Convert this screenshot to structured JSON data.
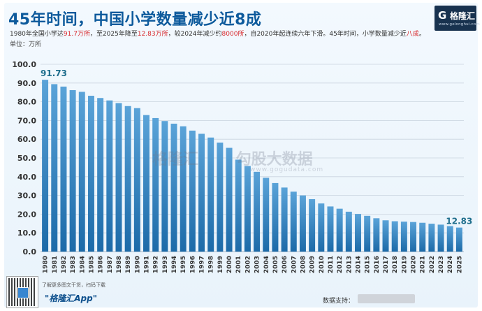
{
  "header": {
    "title": "45年时间，中国小学数量减少近8成",
    "subtitle_parts": [
      {
        "text": "1980年全国小学达",
        "hl": false
      },
      {
        "text": "91.7万所",
        "hl": true
      },
      {
        "text": "，至2025年降至",
        "hl": false
      },
      {
        "text": "12.83万所",
        "hl": true
      },
      {
        "text": "，较2024年减少约",
        "hl": false
      },
      {
        "text": "8000所",
        "hl": true
      },
      {
        "text": "，自2020年起连续六年下滑。45年时间，小学数量减少近",
        "hl": false
      },
      {
        "text": "八成",
        "hl": true
      },
      {
        "text": "。",
        "hl": false
      }
    ],
    "unit": "单位：万所"
  },
  "logo": {
    "mark": "G",
    "name": "格隆汇",
    "url": "www.gelonghui.com"
  },
  "watermark": {
    "brand": "格隆汇",
    "sub": "勾股大数据",
    "url": "www.gogudata.com"
  },
  "footer": {
    "note": "了解更多图文干货，扫码下载",
    "app": "\"格隆汇App\"",
    "source_label": "数据支持："
  },
  "colors": {
    "bar_top": "#5aa3d8",
    "bar_bottom": "#1c6aa8",
    "axis_text": "#333333",
    "title": "#0d5a9c",
    "highlight": "#d8262b",
    "value_label": "#1f6e8c"
  },
  "chart_data": {
    "type": "bar",
    "title": "45年时间，中国小学数量减少近8成",
    "ylabel": "单位：万所",
    "ylim": [
      0,
      100
    ],
    "yticks": [
      "0.0",
      "10.0",
      "20.0",
      "30.0",
      "40.0",
      "50.0",
      "60.0",
      "70.0",
      "80.0",
      "90.0",
      "100.0"
    ],
    "grid": true,
    "categories": [
      "1980",
      "1981",
      "1982",
      "1983",
      "1984",
      "1985",
      "1986",
      "1987",
      "1988",
      "1989",
      "1990",
      "1991",
      "1992",
      "1993",
      "1994",
      "1995",
      "1996",
      "1997",
      "1998",
      "1999",
      "2000",
      "2001",
      "2002",
      "2003",
      "2004",
      "2005",
      "2006",
      "2007",
      "2008",
      "2009",
      "2010",
      "2011",
      "2012",
      "2013",
      "2014",
      "2015",
      "2016",
      "2017",
      "2018",
      "2019",
      "2020",
      "2021",
      "2022",
      "2023",
      "2024",
      "2025"
    ],
    "values": [
      91.73,
      89.4,
      88.1,
      86.2,
      85.3,
      83.2,
      82.0,
      80.7,
      79.3,
      77.7,
      76.6,
      72.9,
      71.3,
      69.7,
      68.3,
      66.9,
      64.6,
      62.9,
      60.9,
      58.2,
      55.4,
      49.1,
      45.7,
      42.6,
      39.4,
      36.6,
      34.2,
      32.0,
      30.0,
      28.0,
      25.7,
      24.1,
      22.9,
      21.3,
      20.1,
      19.1,
      17.8,
      16.7,
      16.2,
      16.0,
      15.8,
      15.4,
      14.9,
      14.4,
      13.6,
      12.83
    ],
    "data_labels": [
      {
        "category": "1980",
        "text": "91.73"
      },
      {
        "category": "2025",
        "text": "12.83"
      }
    ]
  }
}
